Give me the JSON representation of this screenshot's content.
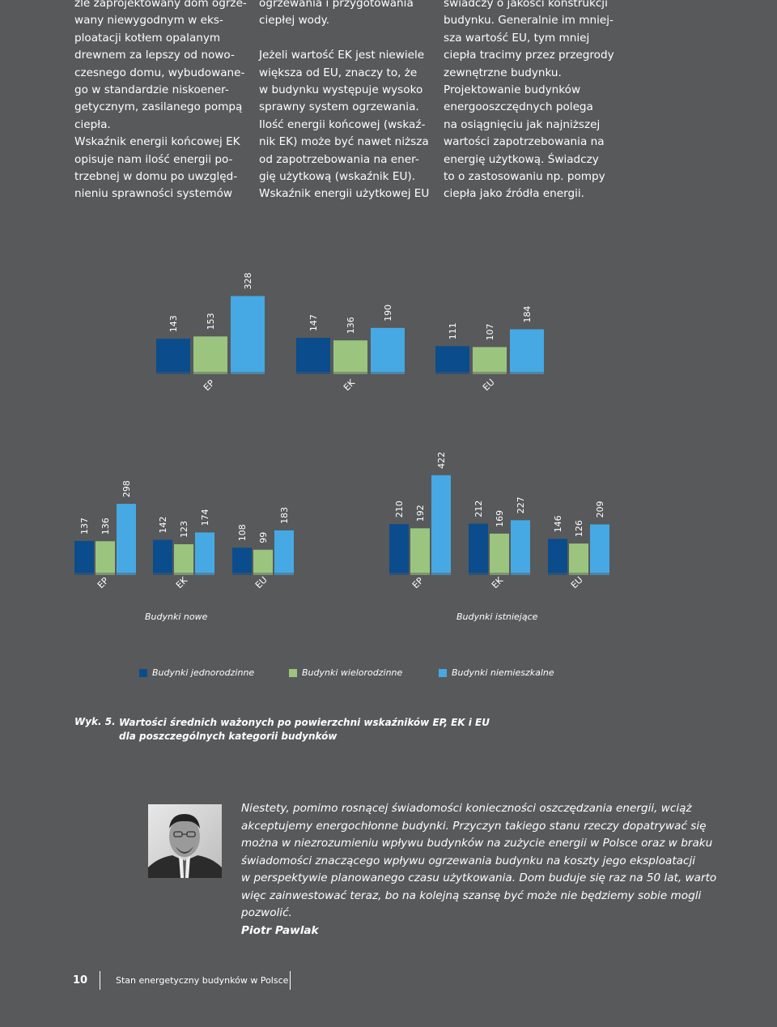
{
  "text_columns": [
    [
      "źle zaprojektowany dom ogrze-",
      "wany niewygodnym w eks-",
      "ploatacji kotłem opalanym",
      "drewnem za lepszy od nowo-",
      "czesnego domu, wybudowane-",
      "go w standardzie niskoener-",
      "getycznym, zasilanego pompą",
      "ciepła.",
      "Wskaźnik energii końcowej EK",
      "opisuje nam ilość energii po-",
      "trzebnej w domu po uwzględ-",
      "nieniu sprawności systemów"
    ],
    [
      "ogrzewania i przygotowania",
      "ciepłej wody.",
      "",
      "Jeżeli wartość EK jest niewiele",
      "większa od EU, znaczy to, że",
      "w budynku występuje wysoko",
      "sprawny system ogrzewania.",
      "Ilość energii końcowej (wskaź-",
      "nik EK) może być nawet niższa",
      "od zapotrzebowania na ener-",
      "gię użytkową (wskaźnik EU).",
      "Wskaźnik energii użytkowej EU"
    ],
    [
      "świadczy o jakości konstrukcji",
      "budynku. Generalnie im mniej-",
      "sza wartość EU, tym mniej",
      "ciepła tracimy przez przegrody",
      "zewnętrzne budynku.",
      "Projektowanie budynków",
      "energooszczędnych polega",
      "na osiągnięciu jak najniższej",
      "wartości zapotrzebowania na",
      "energię użytkową. Świadczy",
      "to o zastosowaniu np. pompy",
      "ciepła jako źródła energii."
    ]
  ],
  "colors": {
    "background": "#58595b",
    "series": [
      "#0b4c8c",
      "#9bc57f",
      "#46a9e3"
    ]
  },
  "chart_data": [
    {
      "type": "bar",
      "categories": [
        "EP",
        "EK",
        "EU"
      ],
      "series": [
        {
          "name": "Budynki jednorodzinne",
          "values": [
            143,
            147,
            111
          ]
        },
        {
          "name": "Budynki wielorodzinne",
          "values": [
            153,
            136,
            107
          ]
        },
        {
          "name": "Budynki niemieszkalne",
          "values": [
            328,
            190,
            184
          ]
        }
      ]
    },
    {
      "type": "bar",
      "groups": [
        "Budynki nowe",
        "Budynki istniejące"
      ],
      "categories": [
        "EP",
        "EK",
        "EU",
        "EP",
        "EK",
        "EU"
      ],
      "series": [
        {
          "name": "Budynki jednorodzinne",
          "values": [
            137,
            142,
            108,
            210,
            212,
            146
          ]
        },
        {
          "name": "Budynki wielorodzinne",
          "values": [
            136,
            123,
            99,
            192,
            169,
            126
          ]
        },
        {
          "name": "Budynki niemieszkalne",
          "values": [
            298,
            174,
            183,
            422,
            227,
            209
          ]
        }
      ]
    }
  ],
  "legend": [
    "Budynki jednorodzinne",
    "Budynki wielorodzinne",
    "Budynki niemieszkalne"
  ],
  "caption": {
    "number": "Wyk. 5.",
    "line1": "Wartości średnich ważonych po powierzchni wskaźników EP, EK i EU",
    "line2": "dla poszczególnych kategorii budynków"
  },
  "quote": {
    "lines": [
      "Niestety, pomimo rosnącej świadomości konieczności oszczędzania energii, wciąż",
      "akceptujemy energochłonne budynki. Przyczyn takiego stanu rzeczy dopatrywać się",
      "można w niezrozumieniu wpływu budynków na zużycie energii w Polsce oraz w braku",
      "świadomości znaczącego wpływu ogrzewania budynku na koszty jego eksploatacji",
      "w perspektywie planowanego czasu użytkowania. Dom buduje się raz na 50 lat, warto",
      "więc zainwestować teraz, bo na kolejną szansę być może nie będziemy sobie mogli",
      "pozwolić."
    ],
    "author": "Piotr Pawlak"
  },
  "footer": {
    "page_number": "10",
    "title": "Stan energetyczny budynków w Polsce"
  }
}
